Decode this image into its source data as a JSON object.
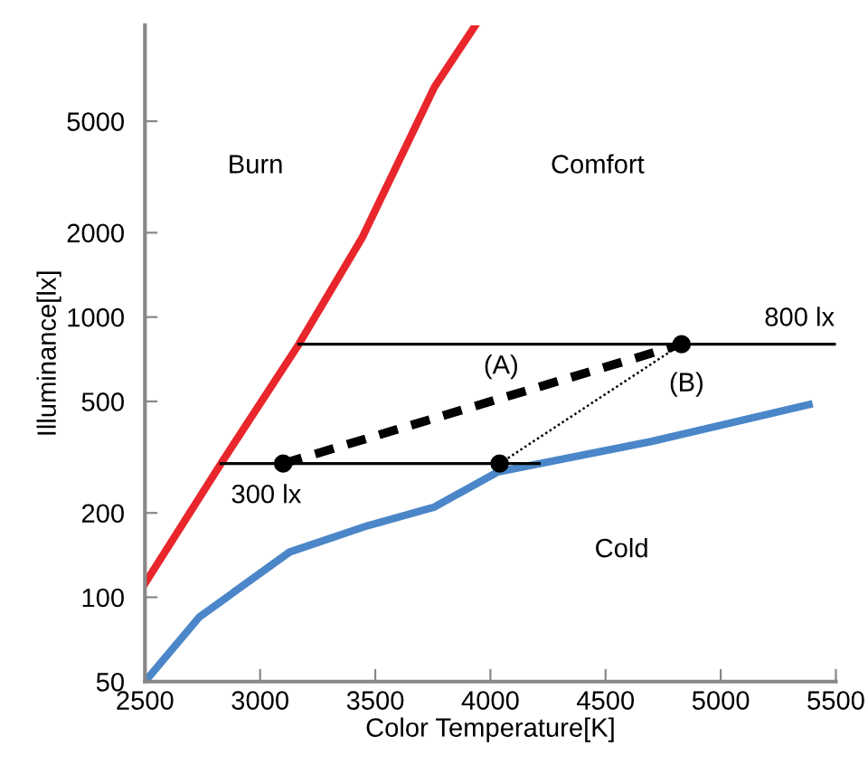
{
  "chart_data": {
    "type": "line",
    "xlabel": "Color Temperature[K]",
    "ylabel": "Illuminance[lx]",
    "xlim": [
      2500,
      5500
    ],
    "xticks": [
      2500,
      3000,
      3500,
      4000,
      4500,
      5000,
      5500
    ],
    "ylim": [
      50,
      11000
    ],
    "log": "y",
    "yticks": [
      50,
      100,
      200,
      500,
      1000,
      2000,
      5000
    ],
    "grid": false,
    "legend": false,
    "series": [
      {
        "color": "#e8262b",
        "line_style": "solid",
        "marker": "none",
        "x": [
          2500,
          2830,
          3168,
          3443,
          3757,
          3935
        ],
        "values": [
          112,
          300,
          800,
          1920,
          6620,
          11000
        ]
      },
      {
        "color": "#4a86c8",
        "line_style": "solid",
        "marker": "none",
        "x": [
          2500,
          2736,
          3128,
          3466,
          3757,
          4032,
          4700,
          5383
        ],
        "values": [
          50,
          85,
          145,
          180,
          210,
          280,
          360,
          487
        ]
      },
      {
        "color": "#000000",
        "line_style": "solid",
        "marker": "none",
        "x": [
          3168,
          5500
        ],
        "values": [
          800,
          800
        ]
      },
      {
        "color": "#000000",
        "line_style": "solid",
        "marker": "none",
        "x": [
          2830,
          4212
        ],
        "values": [
          300,
          300
        ]
      },
      {
        "color": "#000000",
        "line_style": "dashed",
        "marker": "none",
        "x": [
          3100,
          4830
        ],
        "values": [
          300,
          800
        ]
      },
      {
        "color": "#000000",
        "line_style": "dotted",
        "marker": "none",
        "x": [
          4040,
          4830
        ],
        "values": [
          300,
          800
        ]
      },
      {
        "type": "scatter",
        "color": "#000000",
        "marker": "circle",
        "x": [
          3100,
          4040,
          4830
        ],
        "values": [
          300,
          300,
          800
        ]
      }
    ],
    "annotations": [
      "Burn",
      "Comfort",
      "Cold",
      {
        "text": "(A)",
        "x": 4134,
        "y": 540
      },
      {
        "text": "(B)",
        "x": 4830,
        "y": 800
      },
      {
        "text": "300 lx",
        "x": 2830,
        "y": 300
      },
      {
        "text": "800 lx",
        "x": 5500,
        "y": 800
      }
    ]
  }
}
